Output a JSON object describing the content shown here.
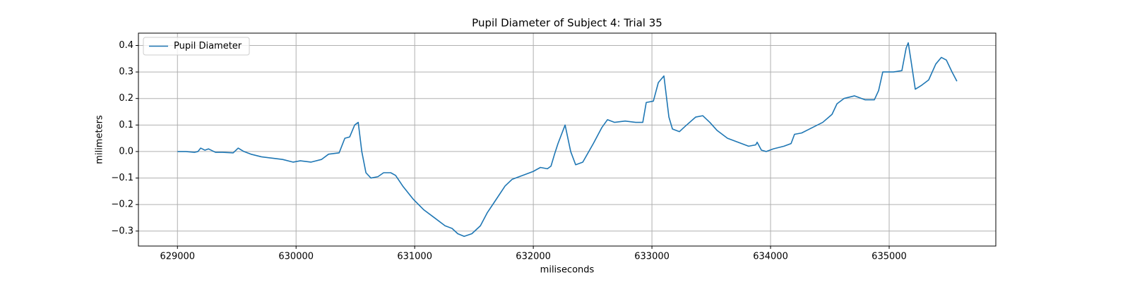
{
  "chart_data": {
    "type": "line",
    "title": "Pupil Diameter of Subject 4: Trial 35",
    "x_label": "miliseconds",
    "y_label": "milimeters",
    "x": [
      629000,
      629071,
      629143,
      629173,
      629196,
      629232,
      629262,
      629321,
      629381,
      629470,
      629512,
      629560,
      629619,
      629708,
      629798,
      629887,
      629976,
      630036,
      630125,
      630214,
      630274,
      630363,
      630411,
      630452,
      630494,
      630524,
      630554,
      630589,
      630631,
      630690,
      630738,
      630798,
      630839,
      630899,
      630988,
      631077,
      631167,
      631256,
      631315,
      631363,
      631417,
      631482,
      631554,
      631613,
      631673,
      631762,
      631821,
      631911,
      632000,
      632060,
      632119,
      632149,
      632179,
      632208,
      632268,
      632315,
      632357,
      632417,
      632506,
      632577,
      632625,
      632684,
      632774,
      632863,
      632923,
      632952,
      633012,
      633054,
      633101,
      633143,
      633173,
      633232,
      633280,
      633369,
      633429,
      633488,
      633548,
      633637,
      633726,
      633815,
      633875,
      633887,
      633923,
      633964,
      634024,
      634113,
      634173,
      634202,
      634262,
      634351,
      634440,
      634518,
      634560,
      634619,
      634708,
      634798,
      634875,
      634911,
      634946,
      635036,
      635107,
      635143,
      635161,
      635185,
      635220,
      635274,
      635333,
      635393,
      635440,
      635482,
      635530,
      635571
    ],
    "series": [
      {
        "name": "Pupil Diameter",
        "color": "#1f77b4",
        "values": [
          0.0,
          0.0,
          -0.003,
          0.0,
          0.013,
          0.005,
          0.01,
          -0.003,
          -0.003,
          -0.005,
          0.013,
          0.0,
          -0.01,
          -0.02,
          -0.025,
          -0.03,
          -0.04,
          -0.035,
          -0.04,
          -0.03,
          -0.01,
          -0.005,
          0.05,
          0.055,
          0.1,
          0.11,
          0.0,
          -0.08,
          -0.1,
          -0.095,
          -0.08,
          -0.08,
          -0.09,
          -0.13,
          -0.18,
          -0.22,
          -0.25,
          -0.28,
          -0.29,
          -0.31,
          -0.32,
          -0.31,
          -0.28,
          -0.23,
          -0.19,
          -0.13,
          -0.105,
          -0.09,
          -0.075,
          -0.06,
          -0.065,
          -0.055,
          -0.01,
          0.03,
          0.1,
          0.0,
          -0.05,
          -0.04,
          0.03,
          0.09,
          0.12,
          0.11,
          0.115,
          0.11,
          0.11,
          0.185,
          0.19,
          0.26,
          0.285,
          0.13,
          0.085,
          0.075,
          0.095,
          0.13,
          0.135,
          0.11,
          0.08,
          0.05,
          0.035,
          0.02,
          0.025,
          0.035,
          0.005,
          0.0,
          0.01,
          0.02,
          0.03,
          0.065,
          0.07,
          0.09,
          0.11,
          0.14,
          0.18,
          0.2,
          0.21,
          0.195,
          0.195,
          0.23,
          0.3,
          0.3,
          0.305,
          0.39,
          0.41,
          0.34,
          0.235,
          0.25,
          0.27,
          0.33,
          0.355,
          0.345,
          0.3,
          0.265
        ]
      }
    ],
    "xlim": [
      628671,
      635899
    ],
    "ylim": [
      -0.3565,
      0.4465
    ],
    "xticks": [
      629000,
      630000,
      631000,
      632000,
      633000,
      634000,
      635000
    ],
    "yticks": [
      {
        "value": -0.3,
        "label": "−0.3"
      },
      {
        "value": -0.2,
        "label": "−0.2"
      },
      {
        "value": -0.1,
        "label": "−0.1"
      },
      {
        "value": 0,
        "label": "0.0"
      },
      0.1,
      0.2,
      0.3,
      0.4
    ],
    "grid": true,
    "legend_loc": "upper left"
  }
}
